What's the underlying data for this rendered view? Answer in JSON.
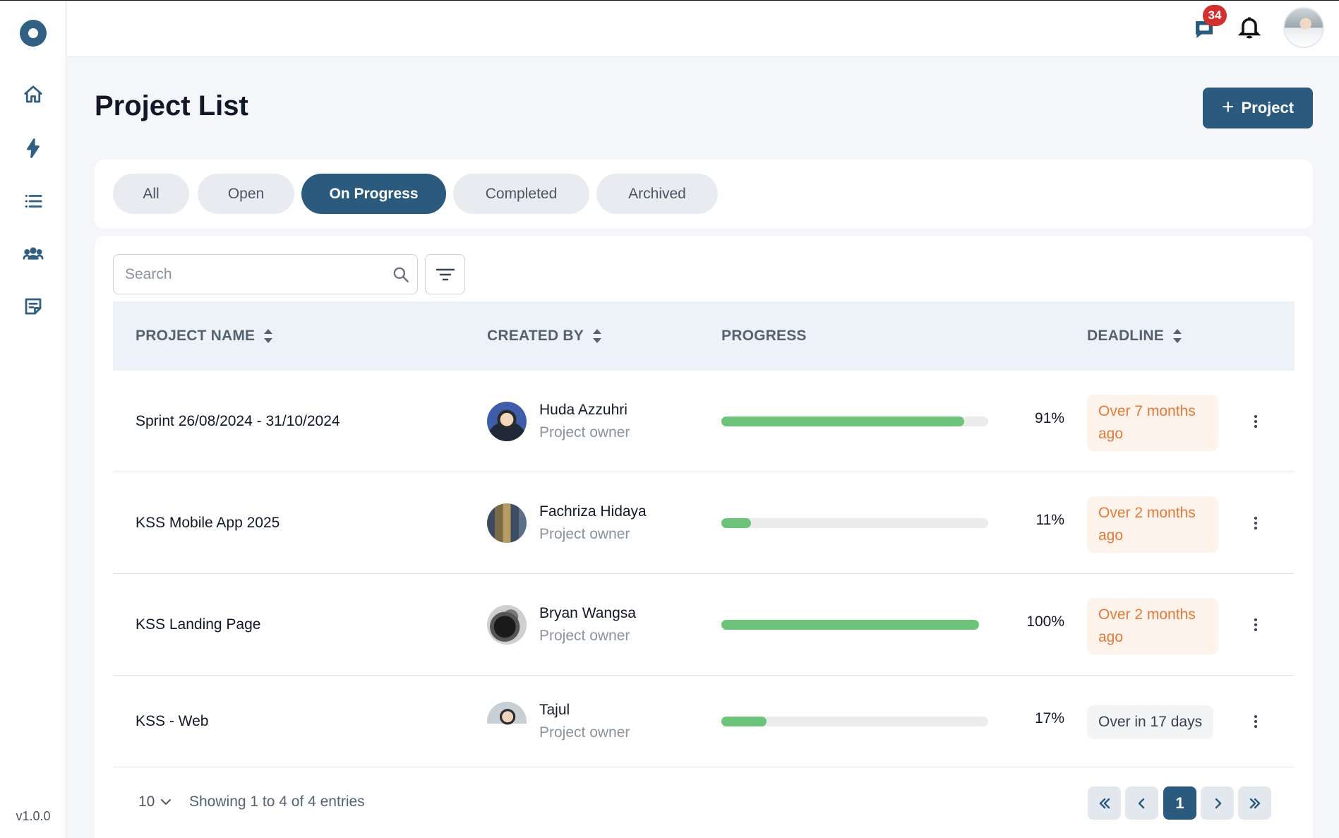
{
  "app": {
    "version": "v1.0.0",
    "notification_count": "34"
  },
  "sidebar": {
    "items": [
      {
        "icon": "home-icon"
      },
      {
        "icon": "lightning-icon"
      },
      {
        "icon": "list-icon"
      },
      {
        "icon": "team-icon"
      },
      {
        "icon": "notes-icon"
      }
    ]
  },
  "page": {
    "title": "Project List",
    "add_button_label": "Project"
  },
  "tabs": [
    {
      "label": "All",
      "active": false
    },
    {
      "label": "Open",
      "active": false
    },
    {
      "label": "On Progress",
      "active": true
    },
    {
      "label": "Completed",
      "active": false
    },
    {
      "label": "Archived",
      "active": false
    }
  ],
  "search": {
    "placeholder": "Search",
    "value": ""
  },
  "table": {
    "columns": [
      "PROJECT NAME",
      "CREATED BY",
      "PROGRESS",
      "DEADLINE"
    ],
    "rows": [
      {
        "name": "Sprint 26/08/2024 - 31/10/2024",
        "creator": "Huda Azzuhri",
        "role": "Project owner",
        "progress": 91,
        "progress_label": "91%",
        "deadline": "Over 7 months ago",
        "overdue": true
      },
      {
        "name": "KSS Mobile App 2025",
        "creator": "Fachriza Hidaya",
        "role": "Project owner",
        "progress": 11,
        "progress_label": "11%",
        "deadline": "Over 2 months ago",
        "overdue": true
      },
      {
        "name": "KSS Landing Page",
        "creator": "Bryan Wangsa",
        "role": "Project owner",
        "progress": 100,
        "progress_label": "100%",
        "deadline": "Over 2 months ago",
        "overdue": true
      },
      {
        "name": "KSS - Web",
        "creator": "Tajul",
        "role": "Project owner",
        "progress": 17,
        "progress_label": "17%",
        "deadline": "Over in 17 days",
        "overdue": false
      }
    ]
  },
  "footer": {
    "page_size": "10",
    "showing": "Showing 1 to 4 of 4 entries",
    "current_page": "1"
  },
  "colors": {
    "primary": "#2b5a7f",
    "progress": "#6cc47a",
    "overdue_text": "#e07b3c",
    "overdue_bg": "#fdf3ea",
    "badge": "#d32f2f"
  }
}
